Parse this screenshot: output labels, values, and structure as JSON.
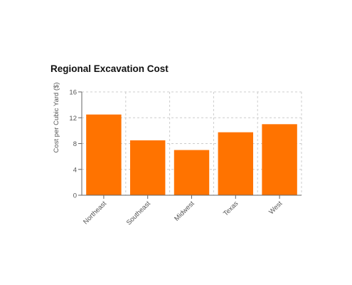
{
  "chart_data": {
    "type": "bar",
    "title": "Regional Excavation Cost",
    "xlabel": "",
    "ylabel": "Cost per Cubic Yard ($)",
    "categories": [
      "Northeast",
      "Southeast",
      "Midwest",
      "Texas",
      "West"
    ],
    "values": [
      12.5,
      8.5,
      7,
      9.75,
      11
    ],
    "ylim": [
      0,
      16
    ],
    "yticks": [
      "0",
      "4",
      "8",
      "12",
      "16"
    ],
    "grid": true,
    "legend": "none",
    "bar_color": "#ff7300",
    "grid_color": "#cccccc",
    "axis_color": "#666666"
  }
}
